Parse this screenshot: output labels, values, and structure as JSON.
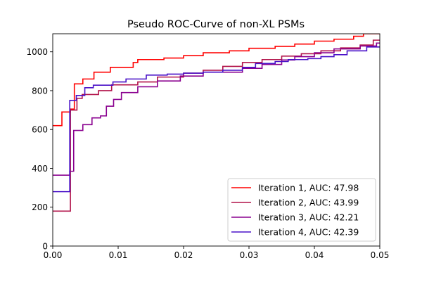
{
  "chart_data": {
    "type": "line",
    "title": "Pseudo ROC-Curve of non-XL PSMs",
    "xlabel": "",
    "ylabel": "",
    "xlim": [
      0.0,
      0.05
    ],
    "ylim": [
      0,
      1093
    ],
    "xticks": [
      0.0,
      0.01,
      0.02,
      0.03,
      0.04,
      0.05
    ],
    "xtick_labels": [
      "0.00",
      "0.01",
      "0.02",
      "0.03",
      "0.04",
      "0.05"
    ],
    "yticks": [
      0,
      200,
      400,
      600,
      800,
      1000
    ],
    "ytick_labels": [
      "0",
      "200",
      "400",
      "600",
      "800",
      "1000"
    ],
    "grid": false,
    "legend_position": "lower-right",
    "step": "post",
    "series": [
      {
        "name": "Iteration 1, AUC: 47.98",
        "color": "#ff0000",
        "points": [
          [
            0.0,
            620
          ],
          [
            0.0014,
            620
          ],
          [
            0.0014,
            690
          ],
          [
            0.0027,
            690
          ],
          [
            0.0027,
            705
          ],
          [
            0.0033,
            705
          ],
          [
            0.0033,
            835
          ],
          [
            0.0046,
            835
          ],
          [
            0.0046,
            860
          ],
          [
            0.0063,
            860
          ],
          [
            0.0063,
            895
          ],
          [
            0.0088,
            895
          ],
          [
            0.0088,
            920
          ],
          [
            0.0123,
            920
          ],
          [
            0.0123,
            945
          ],
          [
            0.013,
            945
          ],
          [
            0.013,
            960
          ],
          [
            0.017,
            960
          ],
          [
            0.017,
            968
          ],
          [
            0.02,
            968
          ],
          [
            0.02,
            980
          ],
          [
            0.023,
            980
          ],
          [
            0.023,
            995
          ],
          [
            0.027,
            995
          ],
          [
            0.027,
            1005
          ],
          [
            0.03,
            1005
          ],
          [
            0.03,
            1018
          ],
          [
            0.034,
            1018
          ],
          [
            0.034,
            1028
          ],
          [
            0.037,
            1028
          ],
          [
            0.037,
            1040
          ],
          [
            0.04,
            1040
          ],
          [
            0.04,
            1055
          ],
          [
            0.043,
            1055
          ],
          [
            0.043,
            1065
          ],
          [
            0.046,
            1065
          ],
          [
            0.046,
            1080
          ],
          [
            0.0475,
            1080
          ],
          [
            0.0475,
            1093
          ],
          [
            0.05,
            1093
          ]
        ]
      },
      {
        "name": "Iteration 2, AUC: 43.99",
        "color": "#b2134a",
        "points": [
          [
            0.0,
            180
          ],
          [
            0.0027,
            180
          ],
          [
            0.0027,
            700
          ],
          [
            0.0037,
            700
          ],
          [
            0.0037,
            760
          ],
          [
            0.0045,
            760
          ],
          [
            0.0045,
            780
          ],
          [
            0.007,
            780
          ],
          [
            0.007,
            800
          ],
          [
            0.009,
            800
          ],
          [
            0.009,
            830
          ],
          [
            0.013,
            830
          ],
          [
            0.013,
            845
          ],
          [
            0.016,
            845
          ],
          [
            0.016,
            870
          ],
          [
            0.02,
            870
          ],
          [
            0.02,
            890
          ],
          [
            0.023,
            890
          ],
          [
            0.023,
            905
          ],
          [
            0.026,
            905
          ],
          [
            0.026,
            925
          ],
          [
            0.029,
            925
          ],
          [
            0.029,
            945
          ],
          [
            0.032,
            945
          ],
          [
            0.032,
            960
          ],
          [
            0.035,
            960
          ],
          [
            0.035,
            978
          ],
          [
            0.038,
            978
          ],
          [
            0.038,
            990
          ],
          [
            0.041,
            990
          ],
          [
            0.041,
            1005
          ],
          [
            0.044,
            1005
          ],
          [
            0.044,
            1020
          ],
          [
            0.047,
            1020
          ],
          [
            0.047,
            1035
          ],
          [
            0.049,
            1035
          ],
          [
            0.049,
            1060
          ],
          [
            0.05,
            1060
          ]
        ]
      },
      {
        "name": "Iteration 3, AUC: 42.21",
        "color": "#8a008f",
        "points": [
          [
            0.0,
            365
          ],
          [
            0.0026,
            365
          ],
          [
            0.0026,
            385
          ],
          [
            0.0032,
            385
          ],
          [
            0.0032,
            595
          ],
          [
            0.0046,
            595
          ],
          [
            0.0046,
            625
          ],
          [
            0.006,
            625
          ],
          [
            0.006,
            660
          ],
          [
            0.0073,
            660
          ],
          [
            0.0073,
            670
          ],
          [
            0.0082,
            670
          ],
          [
            0.0082,
            720
          ],
          [
            0.0093,
            720
          ],
          [
            0.0093,
            755
          ],
          [
            0.0105,
            755
          ],
          [
            0.0105,
            790
          ],
          [
            0.013,
            790
          ],
          [
            0.013,
            820
          ],
          [
            0.016,
            820
          ],
          [
            0.016,
            850
          ],
          [
            0.0195,
            850
          ],
          [
            0.0195,
            875
          ],
          [
            0.023,
            875
          ],
          [
            0.023,
            895
          ],
          [
            0.029,
            895
          ],
          [
            0.029,
            915
          ],
          [
            0.032,
            915
          ],
          [
            0.032,
            935
          ],
          [
            0.035,
            935
          ],
          [
            0.035,
            958
          ],
          [
            0.037,
            958
          ],
          [
            0.037,
            975
          ],
          [
            0.04,
            975
          ],
          [
            0.04,
            995
          ],
          [
            0.043,
            995
          ],
          [
            0.043,
            1015
          ],
          [
            0.047,
            1015
          ],
          [
            0.047,
            1030
          ],
          [
            0.0495,
            1030
          ],
          [
            0.0495,
            1045
          ],
          [
            0.05,
            1045
          ]
        ]
      },
      {
        "name": "Iteration 4, AUC: 42.39",
        "color": "#4a12c8",
        "points": [
          [
            0.0,
            280
          ],
          [
            0.0026,
            280
          ],
          [
            0.0026,
            750
          ],
          [
            0.0036,
            750
          ],
          [
            0.0036,
            775
          ],
          [
            0.0049,
            775
          ],
          [
            0.0049,
            815
          ],
          [
            0.0062,
            815
          ],
          [
            0.0062,
            828
          ],
          [
            0.0092,
            828
          ],
          [
            0.0092,
            845
          ],
          [
            0.0112,
            845
          ],
          [
            0.0112,
            860
          ],
          [
            0.0143,
            860
          ],
          [
            0.0143,
            880
          ],
          [
            0.0175,
            880
          ],
          [
            0.0175,
            885
          ],
          [
            0.02,
            885
          ],
          [
            0.02,
            890
          ],
          [
            0.023,
            890
          ],
          [
            0.023,
            895
          ],
          [
            0.026,
            895
          ],
          [
            0.026,
            905
          ],
          [
            0.029,
            905
          ],
          [
            0.029,
            920
          ],
          [
            0.031,
            920
          ],
          [
            0.031,
            940
          ],
          [
            0.034,
            940
          ],
          [
            0.034,
            950
          ],
          [
            0.036,
            950
          ],
          [
            0.036,
            960
          ],
          [
            0.039,
            960
          ],
          [
            0.039,
            965
          ],
          [
            0.041,
            965
          ],
          [
            0.041,
            975
          ],
          [
            0.043,
            975
          ],
          [
            0.043,
            985
          ],
          [
            0.045,
            985
          ],
          [
            0.045,
            1005
          ],
          [
            0.048,
            1005
          ],
          [
            0.048,
            1025
          ],
          [
            0.05,
            1025
          ]
        ]
      }
    ]
  }
}
